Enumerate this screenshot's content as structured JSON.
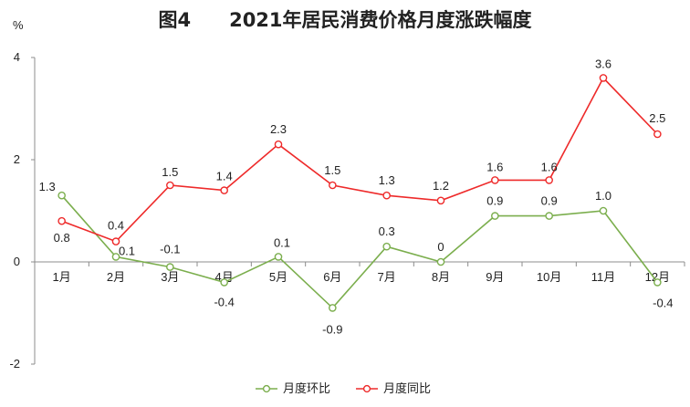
{
  "chart_data": {
    "type": "line",
    "title": "图4　　2021年居民消费价格月度涨跌幅度",
    "ylabel": "%",
    "ylim": [
      -2,
      4
    ],
    "y_ticks": [
      "-2",
      "0",
      "2",
      "4"
    ],
    "categories": [
      "1月",
      "2月",
      "3月",
      "4月",
      "5月",
      "6月",
      "7月",
      "8月",
      "9月",
      "10月",
      "11月",
      "12月"
    ],
    "series": [
      {
        "name": "月度环比",
        "color": "#7bae4d",
        "values": [
          1.3,
          0.1,
          -0.1,
          -0.4,
          0.1,
          -0.9,
          0.3,
          0,
          0.9,
          0.9,
          1.0,
          -0.4
        ],
        "labels": [
          "1.3",
          "0.1",
          "-0.1",
          "-0.4",
          "0.1",
          "-0.9",
          "0.3",
          "0",
          "0.9",
          "0.9",
          "1.0",
          "-0.4"
        ]
      },
      {
        "name": "月度同比",
        "color": "#ee2a2a",
        "values": [
          0.8,
          0.4,
          1.5,
          1.4,
          2.3,
          1.5,
          1.3,
          1.2,
          1.6,
          1.6,
          3.6,
          2.5
        ],
        "labels": [
          "0.8",
          "0.4",
          "1.5",
          "1.4",
          "2.3",
          "1.5",
          "1.3",
          "1.2",
          "1.6",
          "1.6",
          "3.6",
          "2.5"
        ]
      }
    ],
    "legend_position": "bottom-center",
    "grid": false
  }
}
